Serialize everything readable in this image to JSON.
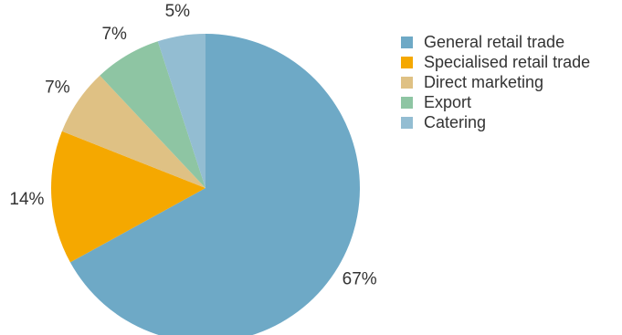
{
  "chart_data": {
    "type": "pie",
    "title": "",
    "start_angle_deg": 0,
    "direction": "clockwise",
    "legend_position": "right",
    "slices": [
      {
        "label": "General retail trade",
        "value": 67,
        "display": "67%",
        "color": "#6ea9c6"
      },
      {
        "label": "Specialised retail trade",
        "value": 14,
        "display": "14%",
        "color": "#f5a800"
      },
      {
        "label": "Direct marketing",
        "value": 7,
        "display": "7%",
        "color": "#dfc184"
      },
      {
        "label": "Export",
        "value": 7,
        "display": "7%",
        "color": "#8ec5a3"
      },
      {
        "label": "Catering",
        "value": 5,
        "display": "5%",
        "color": "#93bdd2"
      }
    ]
  }
}
